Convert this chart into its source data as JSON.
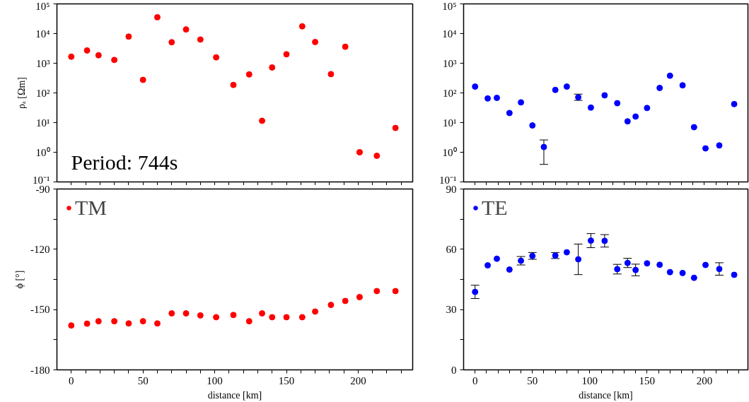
{
  "chart_data": [
    {
      "type": "scatter",
      "ylabel": "ρₐ [Ωm]",
      "log": "y",
      "marker": "circle",
      "tick_labels": "y",
      "annotations": [
        "Period: 744s"
      ],
      "x": [
        0,
        11,
        19,
        30,
        40,
        50,
        60,
        70,
        80,
        90,
        101,
        113,
        124,
        133,
        140,
        150,
        161,
        170,
        181,
        191,
        201,
        213,
        226
      ],
      "xlim": [
        -10,
        238
      ],
      "xticks": [
        {
          "value": 0,
          "label": null
        },
        {
          "value": 10,
          "label": null
        },
        {
          "value": 20,
          "label": null
        },
        {
          "value": 30,
          "label": null
        },
        {
          "value": 40,
          "label": null
        },
        {
          "value": 50,
          "label": null
        },
        {
          "value": 60,
          "label": null
        },
        {
          "value": 70,
          "label": null
        },
        {
          "value": 80,
          "label": null
        },
        {
          "value": 90,
          "label": null
        },
        {
          "value": 100,
          "label": null
        },
        {
          "value": 110,
          "label": null
        },
        {
          "value": 120,
          "label": null
        },
        {
          "value": 130,
          "label": null
        },
        {
          "value": 140,
          "label": null
        },
        {
          "value": 150,
          "label": null
        },
        {
          "value": 160,
          "label": null
        },
        {
          "value": 170,
          "label": null
        },
        {
          "value": 180,
          "label": null
        },
        {
          "value": 190,
          "label": null
        },
        {
          "value": 200,
          "label": null
        },
        {
          "value": 210,
          "label": null
        },
        {
          "value": 220,
          "label": null
        },
        {
          "value": 230,
          "label": null
        }
      ],
      "ylim": [
        0.1,
        100000
      ],
      "yticks": [
        {
          "value": 0.1,
          "label": "10⁻¹"
        },
        {
          "value": 1,
          "label": "10⁰"
        },
        {
          "value": 10,
          "label": "10¹"
        },
        {
          "value": 100,
          "label": "10²"
        },
        {
          "value": 1000,
          "label": "10³"
        },
        {
          "value": 10000,
          "label": "10⁴"
        },
        {
          "value": 100000,
          "label": "10⁵"
        }
      ],
      "series": [
        {
          "color": "#ff0000",
          "values": [
            1660,
            2700,
            1860,
            1290,
            7900,
            275,
            35500,
            5100,
            13800,
            6300,
            1580,
            186,
            420,
            11.5,
            720,
            2000,
            17500,
            5200,
            430,
            3600,
            1.0,
            0.76,
            6.6
          ]
        }
      ]
    },
    {
      "type": "scatter",
      "log": "y",
      "marker": "circle",
      "tick_labels": "y",
      "x": [
        0,
        11,
        19,
        30,
        40,
        50,
        60,
        70,
        80,
        90,
        101,
        113,
        124,
        133,
        140,
        150,
        161,
        170,
        181,
        191,
        201,
        213,
        226
      ],
      "xlim": [
        -10,
        238
      ],
      "xticks": [
        {
          "value": 0,
          "label": null
        },
        {
          "value": 10,
          "label": null
        },
        {
          "value": 20,
          "label": null
        },
        {
          "value": 30,
          "label": null
        },
        {
          "value": 40,
          "label": null
        },
        {
          "value": 50,
          "label": null
        },
        {
          "value": 60,
          "label": null
        },
        {
          "value": 70,
          "label": null
        },
        {
          "value": 80,
          "label": null
        },
        {
          "value": 90,
          "label": null
        },
        {
          "value": 100,
          "label": null
        },
        {
          "value": 110,
          "label": null
        },
        {
          "value": 120,
          "label": null
        },
        {
          "value": 130,
          "label": null
        },
        {
          "value": 140,
          "label": null
        },
        {
          "value": 150,
          "label": null
        },
        {
          "value": 160,
          "label": null
        },
        {
          "value": 170,
          "label": null
        },
        {
          "value": 180,
          "label": null
        },
        {
          "value": 190,
          "label": null
        },
        {
          "value": 200,
          "label": null
        },
        {
          "value": 210,
          "label": null
        },
        {
          "value": 220,
          "label": null
        },
        {
          "value": 230,
          "label": null
        }
      ],
      "ylim": [
        0.1,
        100000
      ],
      "yticks": [
        {
          "value": 0.1,
          "label": "10⁻¹"
        },
        {
          "value": 1,
          "label": "10⁰"
        },
        {
          "value": 10,
          "label": "10¹"
        },
        {
          "value": 100,
          "label": "10²"
        },
        {
          "value": 1000,
          "label": "10³"
        },
        {
          "value": 10000,
          "label": "10⁴"
        },
        {
          "value": 100000,
          "label": "10⁵"
        }
      ],
      "series": [
        {
          "color": "#0000ff",
          "values": [
            163,
            65,
            68,
            21,
            48,
            8,
            1.5,
            126,
            163,
            71,
            32,
            83,
            45,
            11,
            16,
            31,
            147,
            380,
            180,
            7,
            1.35,
            1.7,
            42
          ],
          "errors": [
            null,
            null,
            null,
            null,
            null,
            null,
            [
              0.39,
              2.6
            ],
            null,
            null,
            [
              56,
              91
            ],
            null,
            null,
            null,
            null,
            null,
            null,
            null,
            null,
            null,
            null,
            null,
            null,
            null
          ]
        }
      ]
    },
    {
      "type": "scatter",
      "ylabel": "ϕ [°]",
      "xlabel": "distance [km]",
      "marker": "circle",
      "legend": "top left",
      "x": [
        0,
        11,
        19,
        30,
        40,
        50,
        60,
        70,
        80,
        90,
        101,
        113,
        124,
        133,
        140,
        150,
        161,
        170,
        181,
        191,
        201,
        213,
        226
      ],
      "xlim": [
        -10,
        238
      ],
      "xticks": [
        0,
        {
          "value": 10,
          "label": null
        },
        {
          "value": 20,
          "label": null
        },
        {
          "value": 30,
          "label": null
        },
        {
          "value": 40,
          "label": null
        },
        50,
        {
          "value": 60,
          "label": null
        },
        {
          "value": 70,
          "label": null
        },
        {
          "value": 80,
          "label": null
        },
        {
          "value": 90,
          "label": null
        },
        100,
        {
          "value": 110,
          "label": null
        },
        {
          "value": 120,
          "label": null
        },
        {
          "value": 130,
          "label": null
        },
        {
          "value": 140,
          "label": null
        },
        150,
        {
          "value": 160,
          "label": null
        },
        {
          "value": 170,
          "label": null
        },
        {
          "value": 180,
          "label": null
        },
        {
          "value": 190,
          "label": null
        },
        200,
        {
          "value": 210,
          "label": null
        },
        {
          "value": 220,
          "label": null
        },
        {
          "value": 230,
          "label": null
        }
      ],
      "ylim": [
        -180,
        -90
      ],
      "yticks": [
        -180,
        {
          "value": -165,
          "label": null
        },
        -150,
        {
          "value": -135,
          "label": null
        },
        -120,
        {
          "value": -105,
          "label": null
        },
        -90
      ],
      "series": [
        {
          "name": "TM",
          "color": "#ff0000",
          "values": [
            -157.9,
            -157.0,
            -155.8,
            -155.8,
            -156.9,
            -155.8,
            -156.9,
            -151.9,
            -151.9,
            -152.9,
            -153.8,
            -152.7,
            -155.8,
            -151.9,
            -153.8,
            -153.8,
            -153.8,
            -151.0,
            -147.7,
            -145.7,
            -143.8,
            -140.8,
            -140.8
          ]
        }
      ]
    },
    {
      "type": "scatter",
      "xlabel": "distance [km]",
      "marker": "circle",
      "legend": "top left",
      "x": [
        0,
        11,
        19,
        30,
        40,
        50,
        60,
        70,
        80,
        90,
        101,
        113,
        124,
        133,
        140,
        150,
        161,
        170,
        181,
        191,
        201,
        213,
        226
      ],
      "xlim": [
        -10,
        238
      ],
      "xticks": [
        0,
        {
          "value": 10,
          "label": null
        },
        {
          "value": 20,
          "label": null
        },
        {
          "value": 30,
          "label": null
        },
        {
          "value": 40,
          "label": null
        },
        50,
        {
          "value": 60,
          "label": null
        },
        {
          "value": 70,
          "label": null
        },
        {
          "value": 80,
          "label": null
        },
        {
          "value": 90,
          "label": null
        },
        100,
        {
          "value": 110,
          "label": null
        },
        {
          "value": 120,
          "label": null
        },
        {
          "value": 130,
          "label": null
        },
        {
          "value": 140,
          "label": null
        },
        150,
        {
          "value": 160,
          "label": null
        },
        {
          "value": 170,
          "label": null
        },
        {
          "value": 180,
          "label": null
        },
        {
          "value": 190,
          "label": null
        },
        200,
        {
          "value": 210,
          "label": null
        },
        {
          "value": 220,
          "label": null
        },
        {
          "value": 230,
          "label": null
        }
      ],
      "ylim": [
        0,
        90
      ],
      "yticks": [
        0,
        {
          "value": 15,
          "label": null
        },
        30,
        {
          "value": 45,
          "label": null
        },
        60,
        {
          "value": 75,
          "label": null
        },
        90
      ],
      "series": [
        {
          "name": "TE",
          "color": "#0000ff",
          "values": [
            38.8,
            52.0,
            55.3,
            49.9,
            54.3,
            56.7,
            null,
            56.9,
            58.5,
            55.0,
            64.3,
            64.2,
            50.1,
            53.2,
            49.7,
            53.0,
            52.3,
            48.6,
            48.2,
            45.8,
            52.2,
            50.2,
            47.3
          ],
          "errors": [
            3.3,
            null,
            null,
            null,
            2.1,
            1.7,
            null,
            1.5,
            null,
            7.6,
            3.5,
            3.1,
            2.4,
            2.3,
            2.9,
            null,
            null,
            null,
            null,
            null,
            null,
            3.1,
            null
          ]
        }
      ]
    }
  ]
}
